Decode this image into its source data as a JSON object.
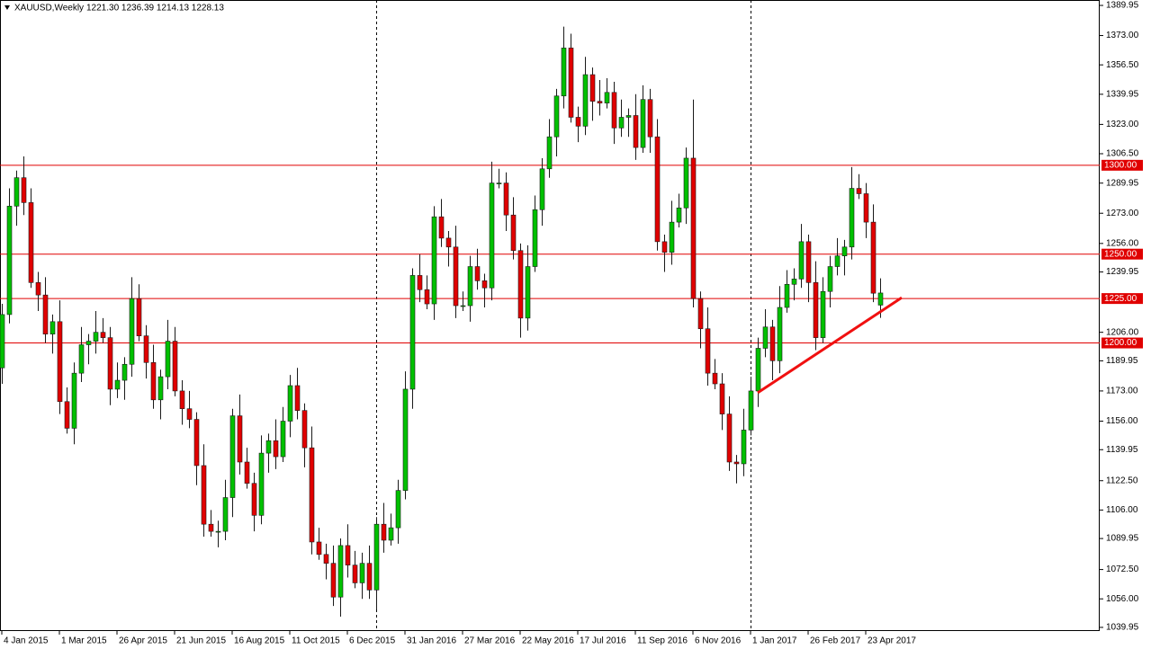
{
  "chart_data": {
    "type": "candlestick",
    "title": "XAUUSD,Weekly",
    "header_ohlc": "1221.30 1236.39 1214.13 1228.13",
    "up_color": "#00c000",
    "down_color": "#e00000",
    "wick_color": "#1a1a1a",
    "categories": [
      "4 Jan 2015",
      null,
      null,
      null,
      null,
      null,
      null,
      null,
      "1 Mar 2015",
      null,
      null,
      null,
      null,
      null,
      null,
      null,
      "26 Apr 2015",
      null,
      null,
      null,
      null,
      null,
      null,
      null,
      "21 Jun 2015",
      null,
      null,
      null,
      null,
      null,
      null,
      null,
      "16 Aug 2015",
      null,
      null,
      null,
      null,
      null,
      null,
      null,
      "11 Oct 2015",
      null,
      null,
      null,
      null,
      null,
      null,
      null,
      "6 Dec 2015",
      null,
      null,
      null,
      null,
      null,
      null,
      null,
      "31 Jan 2016",
      null,
      null,
      null,
      null,
      null,
      null,
      null,
      "27 Mar 2016",
      null,
      null,
      null,
      null,
      null,
      null,
      null,
      "22 May 2016",
      null,
      null,
      null,
      null,
      null,
      null,
      null,
      "17 Jul 2016",
      null,
      null,
      null,
      null,
      null,
      null,
      null,
      "11 Sep 2016",
      null,
      null,
      null,
      null,
      null,
      null,
      null,
      "6 Nov 2016",
      null,
      null,
      null,
      null,
      null,
      null,
      null,
      "1 Jan 2017",
      null,
      null,
      null,
      null,
      null,
      null,
      null,
      "26 Feb 2017",
      null,
      null,
      null,
      null,
      null,
      null,
      null,
      "23 Apr 2017",
      null,
      null
    ],
    "open": [
      1186,
      1216,
      1277,
      1293,
      1279,
      1234,
      1227,
      1205,
      1212,
      1167,
      1152,
      1183,
      1199,
      1201,
      1206,
      1203,
      1174,
      1179,
      1188,
      1225,
      1204,
      1189,
      1168,
      1181,
      1201,
      1173,
      1163,
      1157,
      1131,
      1098,
      1094,
      1094,
      1113,
      1159,
      1133,
      1121,
      1103,
      1138,
      1145,
      1136,
      1156,
      1176,
      1162,
      1141,
      1088,
      1081,
      1076,
      1057,
      1086,
      1075,
      1065,
      1076,
      1061,
      1098,
      1089,
      1096,
      1117,
      1174,
      1238,
      1230,
      1222,
      1271,
      1259,
      1254,
      1221,
      1221,
      1243,
      1235,
      1231,
      1290,
      1290,
      1272,
      1252,
      1214,
      1243,
      1275,
      1298,
      1316,
      1339,
      1366,
      1327,
      1322,
      1351,
      1336,
      1335,
      1341,
      1321,
      1327,
      1328,
      1310,
      1337,
      1316,
      1257,
      1251,
      1268,
      1276,
      1304,
      1225,
      1208,
      1183,
      1177,
      1160,
      1133,
      1132,
      1151,
      1173,
      1197,
      1209,
      1190,
      1220,
      1233,
      1236,
      1257,
      1234,
      1203,
      1229,
      1243,
      1249,
      1254,
      1287,
      1284,
      1268,
      1221.3
    ],
    "high": [
      1222,
      1287,
      1297,
      1305,
      1287,
      1240,
      1237,
      1216,
      1224,
      1175,
      1189,
      1209,
      1205,
      1218,
      1214,
      1209,
      1189,
      1192,
      1237,
      1233,
      1210,
      1199,
      1185,
      1213,
      1209,
      1179,
      1173,
      1161,
      1143,
      1106,
      1100,
      1123,
      1163,
      1171,
      1141,
      1127,
      1148,
      1149,
      1157,
      1164,
      1182,
      1186,
      1166,
      1153,
      1096,
      1087,
      1086,
      1090,
      1098,
      1083,
      1082,
      1086,
      1102,
      1110,
      1104,
      1123,
      1184,
      1242,
      1250,
      1238,
      1277,
      1281,
      1263,
      1266,
      1229,
      1249,
      1253,
      1239,
      1302,
      1298,
      1296,
      1282,
      1256,
      1255,
      1283,
      1304,
      1326,
      1343,
      1378,
      1374,
      1333,
      1361,
      1355,
      1348,
      1349,
      1347,
      1337,
      1332,
      1340,
      1345,
      1343,
      1326,
      1261,
      1280,
      1284,
      1310,
      1337,
      1229,
      1220,
      1191,
      1183,
      1170,
      1137,
      1163,
      1181,
      1203,
      1219,
      1213,
      1232,
      1241,
      1242,
      1267,
      1261,
      1246,
      1237,
      1249,
      1259,
      1258,
      1299,
      1295,
      1290,
      1278,
      1236.39
    ],
    "low": [
      1177,
      1211,
      1266,
      1272,
      1231,
      1218,
      1200,
      1194,
      1160,
      1149,
      1143,
      1178,
      1188,
      1194,
      1200,
      1165,
      1169,
      1168,
      1181,
      1201,
      1180,
      1163,
      1157,
      1174,
      1170,
      1154,
      1152,
      1120,
      1091,
      1091,
      1085,
      1089,
      1102,
      1126,
      1118,
      1094,
      1098,
      1127,
      1129,
      1133,
      1147,
      1157,
      1130,
      1081,
      1078,
      1067,
      1052,
      1046,
      1068,
      1062,
      1056,
      1056,
      1050,
      1082,
      1086,
      1087,
      1112,
      1163,
      1223,
      1219,
      1213,
      1254,
      1243,
      1214,
      1218,
      1212,
      1230,
      1220,
      1224,
      1287,
      1263,
      1247,
      1203,
      1207,
      1240,
      1266,
      1293,
      1305,
      1332,
      1324,
      1313,
      1317,
      1325,
      1328,
      1332,
      1312,
      1316,
      1316,
      1303,
      1307,
      1307,
      1252,
      1240,
      1244,
      1265,
      1267,
      1220,
      1197,
      1176,
      1174,
      1151,
      1128,
      1121,
      1125,
      1148,
      1164,
      1192,
      1179,
      1183,
      1217,
      1224,
      1231,
      1223,
      1196,
      1200,
      1220,
      1238,
      1238,
      1247,
      1281,
      1259,
      1223,
      1214.13
    ],
    "close": [
      1216,
      1277,
      1293,
      1279,
      1234,
      1227,
      1205,
      1212,
      1167,
      1152,
      1183,
      1199,
      1201,
      1206,
      1203,
      1174,
      1179,
      1188,
      1225,
      1204,
      1189,
      1168,
      1181,
      1201,
      1173,
      1163,
      1157,
      1131,
      1098,
      1094,
      1094,
      1113,
      1159,
      1133,
      1121,
      1103,
      1138,
      1145,
      1136,
      1156,
      1176,
      1162,
      1141,
      1088,
      1081,
      1076,
      1057,
      1086,
      1075,
      1065,
      1076,
      1061,
      1098,
      1089,
      1096,
      1117,
      1174,
      1238,
      1230,
      1222,
      1271,
      1259,
      1254,
      1221,
      1221,
      1243,
      1235,
      1231,
      1290,
      1290,
      1272,
      1252,
      1214,
      1243,
      1275,
      1298,
      1316,
      1339,
      1366,
      1327,
      1322,
      1351,
      1336,
      1335,
      1341,
      1321,
      1327,
      1328,
      1310,
      1337,
      1316,
      1257,
      1251,
      1268,
      1276,
      1304,
      1225,
      1208,
      1183,
      1177,
      1160,
      1133,
      1132,
      1151,
      1173,
      1197,
      1209,
      1190,
      1220,
      1233,
      1236,
      1257,
      1234,
      1203,
      1229,
      1243,
      1249,
      1254,
      1287,
      1284,
      1268,
      1228,
      1228.13
    ],
    "ylim": [
      1037.9,
      1393.0
    ],
    "yticks": [
      {
        "value": 1389.95,
        "label": "1389.95"
      },
      {
        "value": 1373,
        "label": "1373.00"
      },
      {
        "value": 1356.5,
        "label": "1356.50"
      },
      {
        "value": 1339.95,
        "label": "1339.95"
      },
      {
        "value": 1323,
        "label": "1323.00"
      },
      {
        "value": 1306.5,
        "label": "1306.50"
      },
      {
        "value": 1289.95,
        "label": "1289.95"
      },
      {
        "value": 1273,
        "label": "1273.00"
      },
      {
        "value": 1256,
        "label": "1256.00"
      },
      {
        "value": 1239.95,
        "label": "1239.95"
      },
      {
        "value": 1206,
        "label": "1206.00"
      },
      {
        "value": 1189.95,
        "label": "1189.95"
      },
      {
        "value": 1173,
        "label": "1173.00"
      },
      {
        "value": 1156,
        "label": "1156.00"
      },
      {
        "value": 1139.95,
        "label": "1139.95"
      },
      {
        "value": 1122.5,
        "label": "1122.50"
      },
      {
        "value": 1106,
        "label": "1106.00"
      },
      {
        "value": 1089.95,
        "label": "1089.95"
      },
      {
        "value": 1072.5,
        "label": "1072.50"
      },
      {
        "value": 1056,
        "label": "1056.00"
      },
      {
        "value": 1039.95,
        "label": "1039.95"
      }
    ],
    "levels": [
      {
        "value": 1300,
        "label": "1300.00"
      },
      {
        "value": 1250,
        "label": "1250.00"
      },
      {
        "value": 1225,
        "label": "1225.00"
      },
      {
        "value": 1200,
        "label": "1200.00"
      }
    ],
    "level_color": "#e00000",
    "separators": [
      52,
      104
    ],
    "trendline": {
      "x": [
        105,
        125
      ],
      "y": [
        1172,
        1225.5
      ],
      "color": "#f01010"
    }
  }
}
